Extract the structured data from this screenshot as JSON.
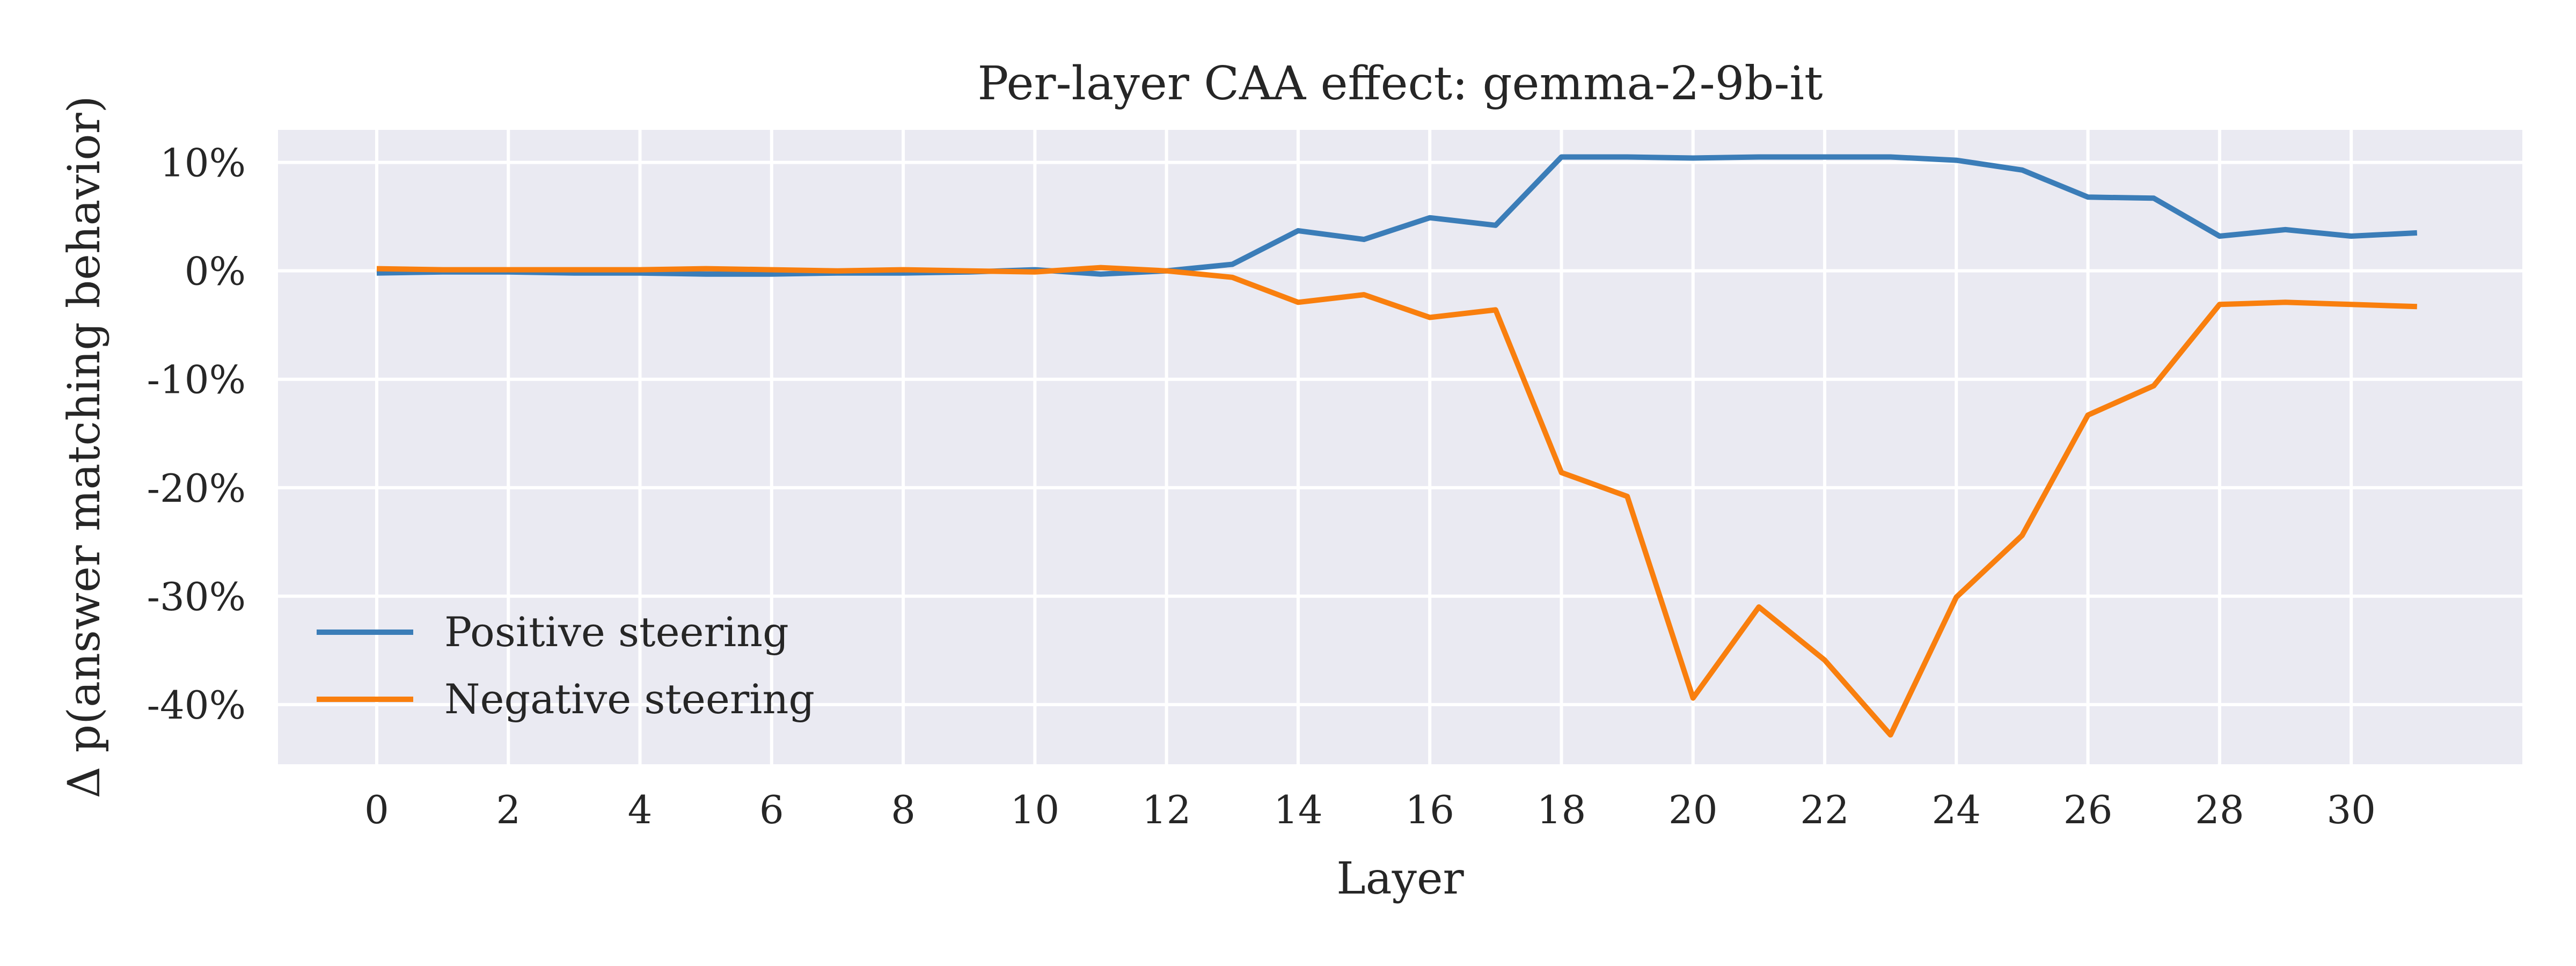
{
  "chart_data": {
    "type": "line",
    "title": "Per-layer CAA effect: gemma-2-9b-it",
    "xlabel": "Layer",
    "ylabel": "Δ p(answer matching behavior)",
    "xlim": [
      -1.5,
      32.6
    ],
    "ylim": [
      -45.5,
      13.0
    ],
    "x_ticks": [
      0,
      2,
      4,
      6,
      8,
      10,
      12,
      14,
      16,
      18,
      20,
      22,
      24,
      26,
      28,
      30
    ],
    "y_ticks": [
      10,
      0,
      -10,
      -20,
      -30,
      -40
    ],
    "y_tick_labels": [
      "10%",
      "0%",
      "-10%",
      "-20%",
      "-30%",
      "-40%"
    ],
    "grid": true,
    "legend_position": "lower-left",
    "x": [
      0,
      1,
      2,
      3,
      4,
      5,
      6,
      7,
      8,
      9,
      10,
      11,
      12,
      13,
      14,
      15,
      16,
      17,
      18,
      19,
      20,
      21,
      22,
      23,
      24,
      25,
      26,
      27,
      28,
      29,
      30,
      31
    ],
    "series": [
      {
        "name": "Positive steering",
        "color": "#3b7db8",
        "values": [
          -0.2,
          -0.1,
          -0.1,
          -0.2,
          -0.2,
          -0.3,
          -0.3,
          -0.2,
          -0.2,
          -0.1,
          0.1,
          -0.3,
          0.0,
          0.6,
          3.7,
          2.9,
          4.9,
          4.2,
          10.5,
          10.5,
          10.4,
          10.5,
          10.5,
          10.5,
          10.2,
          9.3,
          6.8,
          6.7,
          3.2,
          3.8,
          3.2,
          3.5
        ]
      },
      {
        "name": "Negative steering",
        "color": "#f97f0e",
        "values": [
          0.2,
          0.1,
          0.1,
          0.1,
          0.1,
          0.2,
          0.1,
          0.0,
          0.1,
          0.0,
          -0.1,
          0.3,
          0.0,
          -0.6,
          -2.9,
          -2.2,
          -4.3,
          -3.6,
          -18.6,
          -20.8,
          -39.4,
          -31.0,
          -35.9,
          -42.8,
          -30.1,
          -24.4,
          -13.3,
          -10.6,
          -3.1,
          -2.9,
          -3.1,
          -3.3
        ]
      }
    ]
  }
}
